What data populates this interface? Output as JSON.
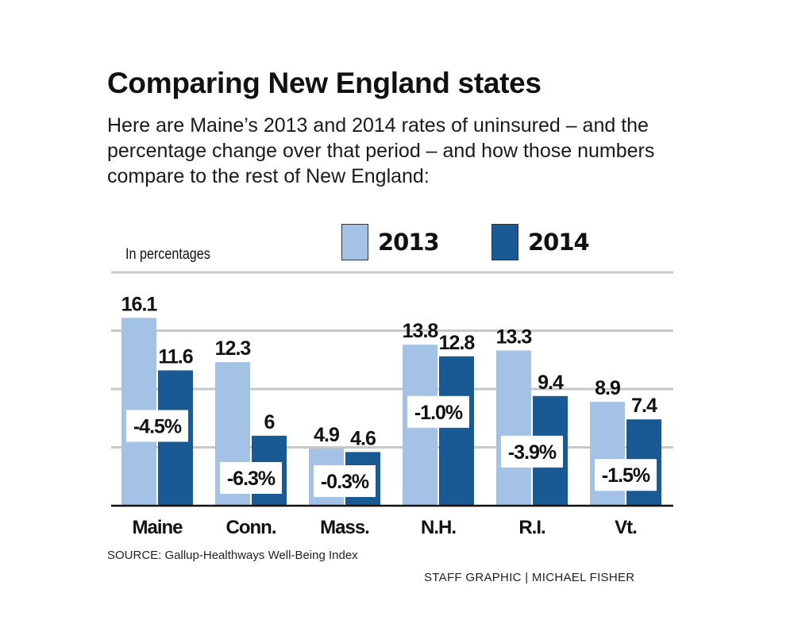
{
  "header": {
    "title": "Comparing New England states",
    "subtitle": "Here are Maine’s 2013 and 2014 rates of uninsured – and the percentage change over that period – and how those numbers compare to the rest of New England:"
  },
  "legend": [
    {
      "label": "2013",
      "color": "#a4c2e6"
    },
    {
      "label": "2014",
      "color": "#195a95"
    }
  ],
  "footer": {
    "source": "SOURCE: Gallup-Healthways Well-Being Index",
    "credit": "STAFF GRAPHIC | MICHAEL FISHER"
  },
  "chart_data": {
    "type": "bar",
    "title": "Comparing New England states",
    "ylabel": "In percentages",
    "xlabel": "",
    "ylim": [
      0,
      20
    ],
    "grid": true,
    "gridlines": [
      5,
      10,
      15,
      20
    ],
    "legend_position": "top-right",
    "categories": [
      "Maine",
      "Conn.",
      "Mass.",
      "N.H.",
      "R.I.",
      "Vt."
    ],
    "series": [
      {
        "name": "2013",
        "color": "#a4c2e6",
        "values": [
          16.1,
          12.3,
          4.9,
          13.8,
          13.3,
          8.9
        ],
        "labels": [
          "16.1",
          "12.3",
          "4.9",
          "13.8",
          "13.3",
          "8.9"
        ]
      },
      {
        "name": "2014",
        "color": "#195a95",
        "values": [
          11.6,
          6,
          4.6,
          12.8,
          9.4,
          7.4
        ],
        "labels": [
          "11.6",
          "6",
          "4.6",
          "12.8",
          "9.4",
          "7.4"
        ]
      }
    ],
    "annotations": [
      "-4.5%",
      "-6.3%",
      "-0.3%",
      "-1.0%",
      "-3.9%",
      "-1.5%"
    ]
  }
}
